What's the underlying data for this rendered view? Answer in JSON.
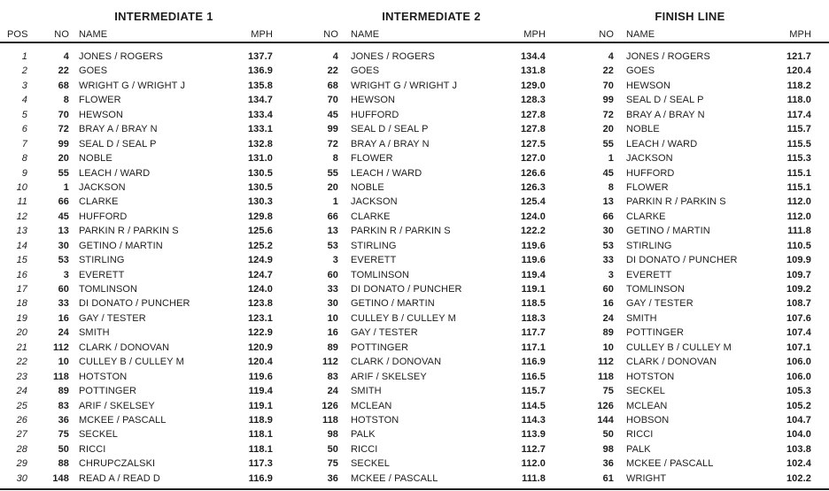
{
  "colors": {
    "text": "#1d1d1d",
    "rule": "#1d1d1d",
    "background": "#ffffff"
  },
  "sections": [
    {
      "title": "INTERMEDIATE 1",
      "columns": [
        "POS",
        "NO",
        "NAME",
        "MPH"
      ],
      "rows": [
        [
          1,
          4,
          "JONES / ROGERS",
          "137.7"
        ],
        [
          2,
          22,
          "GOES",
          "136.9"
        ],
        [
          3,
          68,
          "WRIGHT G / WRIGHT J",
          "135.8"
        ],
        [
          4,
          8,
          "FLOWER",
          "134.7"
        ],
        [
          5,
          70,
          "HEWSON",
          "133.4"
        ],
        [
          6,
          72,
          "BRAY A / BRAY N",
          "133.1"
        ],
        [
          7,
          99,
          "SEAL D / SEAL P",
          "132.8"
        ],
        [
          8,
          20,
          "NOBLE",
          "131.0"
        ],
        [
          9,
          55,
          "LEACH / WARD",
          "130.5"
        ],
        [
          10,
          1,
          "JACKSON",
          "130.5"
        ],
        [
          11,
          66,
          "CLARKE",
          "130.3"
        ],
        [
          12,
          45,
          "HUFFORD",
          "129.8"
        ],
        [
          13,
          13,
          "PARKIN R / PARKIN S",
          "125.6"
        ],
        [
          14,
          30,
          "GETINO / MARTIN",
          "125.2"
        ],
        [
          15,
          53,
          "STIRLING",
          "124.9"
        ],
        [
          16,
          3,
          "EVERETT",
          "124.7"
        ],
        [
          17,
          60,
          "TOMLINSON",
          "124.0"
        ],
        [
          18,
          33,
          "DI DONATO / PUNCHER",
          "123.8"
        ],
        [
          19,
          16,
          "GAY / TESTER",
          "123.1"
        ],
        [
          20,
          24,
          "SMITH",
          "122.9"
        ],
        [
          21,
          112,
          "CLARK / DONOVAN",
          "120.9"
        ],
        [
          22,
          10,
          "CULLEY B / CULLEY M",
          "120.4"
        ],
        [
          23,
          118,
          "HOTSTON",
          "119.6"
        ],
        [
          24,
          89,
          "POTTINGER",
          "119.4"
        ],
        [
          25,
          83,
          "ARIF / SKELSEY",
          "119.1"
        ],
        [
          26,
          36,
          "MCKEE / PASCALL",
          "118.9"
        ],
        [
          27,
          75,
          "SECKEL",
          "118.1"
        ],
        [
          28,
          50,
          "RICCI",
          "118.1"
        ],
        [
          29,
          88,
          "CHRUPCZALSKI",
          "117.3"
        ],
        [
          30,
          148,
          "READ A / READ D",
          "116.9"
        ]
      ]
    },
    {
      "title": "INTERMEDIATE 2",
      "columns": [
        "NO",
        "NAME",
        "MPH"
      ],
      "rows": [
        [
          4,
          "JONES / ROGERS",
          "134.4"
        ],
        [
          22,
          "GOES",
          "131.8"
        ],
        [
          68,
          "WRIGHT G / WRIGHT J",
          "129.0"
        ],
        [
          70,
          "HEWSON",
          "128.3"
        ],
        [
          45,
          "HUFFORD",
          "127.8"
        ],
        [
          99,
          "SEAL D / SEAL P",
          "127.8"
        ],
        [
          72,
          "BRAY A / BRAY N",
          "127.5"
        ],
        [
          8,
          "FLOWER",
          "127.0"
        ],
        [
          55,
          "LEACH / WARD",
          "126.6"
        ],
        [
          20,
          "NOBLE",
          "126.3"
        ],
        [
          1,
          "JACKSON",
          "125.4"
        ],
        [
          66,
          "CLARKE",
          "124.0"
        ],
        [
          13,
          "PARKIN R / PARKIN S",
          "122.2"
        ],
        [
          53,
          "STIRLING",
          "119.6"
        ],
        [
          3,
          "EVERETT",
          "119.6"
        ],
        [
          60,
          "TOMLINSON",
          "119.4"
        ],
        [
          33,
          "DI DONATO / PUNCHER",
          "119.1"
        ],
        [
          30,
          "GETINO / MARTIN",
          "118.5"
        ],
        [
          10,
          "CULLEY B / CULLEY M",
          "118.3"
        ],
        [
          16,
          "GAY / TESTER",
          "117.7"
        ],
        [
          89,
          "POTTINGER",
          "117.1"
        ],
        [
          112,
          "CLARK / DONOVAN",
          "116.9"
        ],
        [
          83,
          "ARIF / SKELSEY",
          "116.5"
        ],
        [
          24,
          "SMITH",
          "115.7"
        ],
        [
          126,
          "MCLEAN",
          "114.5"
        ],
        [
          118,
          "HOTSTON",
          "114.3"
        ],
        [
          98,
          "PALK",
          "113.9"
        ],
        [
          50,
          "RICCI",
          "112.7"
        ],
        [
          75,
          "SECKEL",
          "112.0"
        ],
        [
          36,
          "MCKEE / PASCALL",
          "111.8"
        ]
      ]
    },
    {
      "title": "FINISH LINE",
      "columns": [
        "NO",
        "NAME",
        "MPH"
      ],
      "rows": [
        [
          4,
          "JONES / ROGERS",
          "121.7"
        ],
        [
          22,
          "GOES",
          "120.4"
        ],
        [
          70,
          "HEWSON",
          "118.2"
        ],
        [
          99,
          "SEAL D / SEAL P",
          "118.0"
        ],
        [
          72,
          "BRAY A / BRAY N",
          "117.4"
        ],
        [
          20,
          "NOBLE",
          "115.7"
        ],
        [
          55,
          "LEACH / WARD",
          "115.5"
        ],
        [
          1,
          "JACKSON",
          "115.3"
        ],
        [
          45,
          "HUFFORD",
          "115.1"
        ],
        [
          8,
          "FLOWER",
          "115.1"
        ],
        [
          13,
          "PARKIN R / PARKIN S",
          "112.0"
        ],
        [
          66,
          "CLARKE",
          "112.0"
        ],
        [
          30,
          "GETINO / MARTIN",
          "111.8"
        ],
        [
          53,
          "STIRLING",
          "110.5"
        ],
        [
          33,
          "DI DONATO / PUNCHER",
          "109.9"
        ],
        [
          3,
          "EVERETT",
          "109.7"
        ],
        [
          60,
          "TOMLINSON",
          "109.2"
        ],
        [
          16,
          "GAY / TESTER",
          "108.7"
        ],
        [
          24,
          "SMITH",
          "107.6"
        ],
        [
          89,
          "POTTINGER",
          "107.4"
        ],
        [
          10,
          "CULLEY B / CULLEY M",
          "107.1"
        ],
        [
          112,
          "CLARK / DONOVAN",
          "106.0"
        ],
        [
          118,
          "HOTSTON",
          "106.0"
        ],
        [
          75,
          "SECKEL",
          "105.3"
        ],
        [
          126,
          "MCLEAN",
          "105.2"
        ],
        [
          144,
          "HOBSON",
          "104.7"
        ],
        [
          50,
          "RICCI",
          "104.0"
        ],
        [
          98,
          "PALK",
          "103.8"
        ],
        [
          36,
          "MCKEE / PASCALL",
          "102.4"
        ],
        [
          61,
          "WRIGHT",
          "102.2"
        ]
      ]
    }
  ]
}
